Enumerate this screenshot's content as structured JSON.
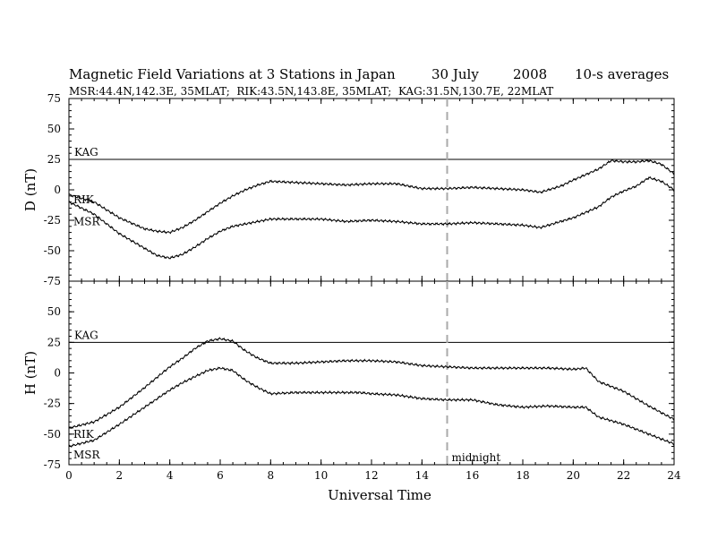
{
  "title": "Magnetic Field Variations at 3 Stations in Japan",
  "date_day": "30 July",
  "date_year": "2008",
  "averaging": "10-s averages",
  "subtitle": "MSR:44.4N,142.3E, 35MLAT;  RIK:43.5N,143.8E, 35MLAT;  KAG:31.5N,130.7E, 22MLAT",
  "xlabel": "Universal Time",
  "midnight_label": "midnight",
  "colors": {
    "axis": "#000000",
    "trace": "#000000",
    "midnight_line": "#aaaaaa"
  },
  "chart_data": [
    {
      "type": "line",
      "panel": "D",
      "ylabel": "D (nT)",
      "ylim": [
        -75,
        75
      ],
      "yticks": [
        -75,
        -50,
        -25,
        0,
        25,
        50,
        75
      ],
      "xlim": [
        0,
        24
      ],
      "xticks": [
        0,
        2,
        4,
        6,
        8,
        10,
        12,
        14,
        16,
        18,
        20,
        22,
        24
      ],
      "reference_line": {
        "label": "KAG",
        "y": 25
      },
      "midnight_ut": 15,
      "series": [
        {
          "name": "RIK",
          "x": [
            0,
            1,
            2,
            3,
            3.5,
            4,
            4.5,
            5,
            5.5,
            6,
            6.5,
            7,
            7.5,
            8,
            9,
            10,
            11,
            12,
            13,
            14,
            15,
            16,
            17,
            18,
            18.7,
            19.5,
            20,
            21,
            21.5,
            22,
            22.5,
            23,
            23.5,
            24
          ],
          "y": [
            -4,
            -10,
            -23,
            -32,
            -34,
            -35,
            -31,
            -25,
            -18,
            -11,
            -5,
            0,
            4,
            7,
            6,
            5,
            4,
            5,
            5,
            1,
            1,
            2,
            1,
            0,
            -2,
            3,
            8,
            17,
            24,
            23,
            23,
            24,
            21,
            13
          ]
        },
        {
          "name": "MSR",
          "x": [
            0,
            1,
            2,
            3,
            3.5,
            4,
            4.5,
            5,
            5.5,
            6,
            6.5,
            7,
            7.5,
            8,
            9,
            10,
            11,
            12,
            13,
            14,
            15,
            16,
            17,
            18,
            18.7,
            19.5,
            20,
            21,
            21.5,
            22,
            22.5,
            23,
            23.5,
            24
          ],
          "y": [
            -10,
            -20,
            -36,
            -48,
            -54,
            -56,
            -53,
            -47,
            -40,
            -34,
            -30,
            -28,
            -26,
            -24,
            -24,
            -24,
            -26,
            -25,
            -26,
            -28,
            -28,
            -27,
            -28,
            -29,
            -31,
            -26,
            -23,
            -14,
            -6,
            -1,
            3,
            10,
            7,
            0
          ]
        }
      ]
    },
    {
      "type": "line",
      "panel": "H",
      "ylabel": "H (nT)",
      "ylim": [
        -75,
        75
      ],
      "yticks": [
        -75,
        -50,
        -25,
        0,
        25,
        50,
        75
      ],
      "xlim": [
        0,
        24
      ],
      "xticks": [
        0,
        2,
        4,
        6,
        8,
        10,
        12,
        14,
        16,
        18,
        20,
        22,
        24
      ],
      "reference_line": {
        "label": "KAG",
        "y": 25
      },
      "midnight_ut": 15,
      "series": [
        {
          "name": "RIK",
          "x": [
            0,
            1,
            2,
            3,
            4,
            4.5,
            5,
            5.5,
            6,
            6.5,
            7,
            7.5,
            8,
            9,
            10,
            11,
            11.5,
            12,
            13,
            14,
            15,
            16,
            17,
            18,
            19,
            20,
            20.5,
            21,
            22,
            23,
            24
          ],
          "y": [
            -45,
            -40,
            -28,
            -12,
            5,
            12,
            20,
            26,
            28,
            26,
            18,
            12,
            8,
            8,
            9,
            10,
            10,
            10,
            9,
            6,
            5,
            4,
            4,
            4,
            4,
            3,
            4,
            -7,
            -15,
            -27,
            -38
          ],
          "label_y": -50
        },
        {
          "name": "MSR",
          "x": [
            0,
            1,
            2,
            3,
            4,
            4.5,
            5,
            5.5,
            6,
            6.5,
            7,
            7.5,
            8,
            9,
            10,
            11,
            11.5,
            12,
            13,
            14,
            15,
            16,
            17,
            18,
            19,
            20,
            20.5,
            21,
            22,
            23,
            24
          ],
          "y": [
            -60,
            -55,
            -42,
            -28,
            -14,
            -8,
            -3,
            2,
            4,
            2,
            -6,
            -12,
            -17,
            -16,
            -16,
            -16,
            -16,
            -17,
            -18,
            -21,
            -22,
            -22,
            -26,
            -28,
            -27,
            -28,
            -28,
            -36,
            -42,
            -50,
            -58
          ],
          "label_y": -67
        }
      ]
    }
  ]
}
